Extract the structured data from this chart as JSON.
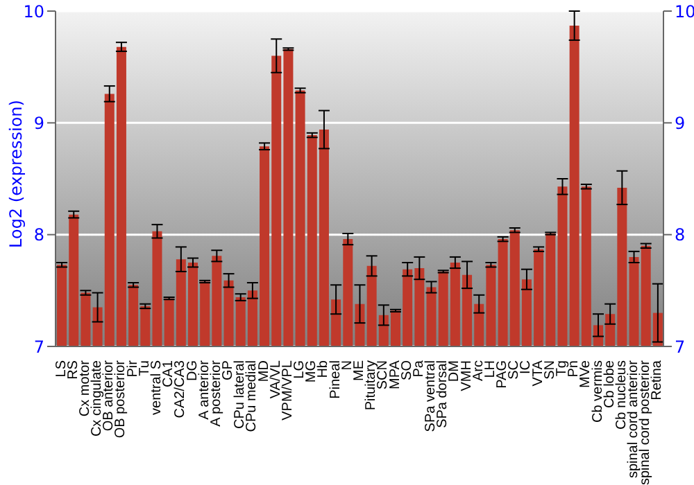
{
  "chart_data": {
    "type": "bar",
    "ylabel": "Log2 (expression)",
    "categories": [
      "LS",
      "RS",
      "Cx motor",
      "Cx cingulate",
      "OB anterior",
      "OB posterior",
      "Pir",
      "Tu",
      "ventral S",
      "CA1",
      "CA2/CA3",
      "DG",
      "A anterior",
      "A posterior",
      "GP",
      "CPu lateral",
      "CPu medial",
      "MD",
      "VA/VL",
      "VPM/VPL",
      "LG",
      "MG",
      "Hb",
      "Pineal",
      "N",
      "ME",
      "Pituitary",
      "SCN",
      "MPA",
      "SO",
      "Pa",
      "SPa ventral",
      "SPa dorsal",
      "DM",
      "VMH",
      "Arc",
      "LH",
      "PAG",
      "SC",
      "IC",
      "VTA",
      "SN",
      "Tg",
      "Pn",
      "MVe",
      "Cb vermis",
      "Cb lobe",
      "Cb nucleus",
      "spinal cord anterior",
      "spinal cord posterior",
      "Retina"
    ],
    "values": [
      7.73,
      8.18,
      7.48,
      7.35,
      9.26,
      9.68,
      7.55,
      7.36,
      8.03,
      7.43,
      7.78,
      7.75,
      7.58,
      7.81,
      7.59,
      7.44,
      7.5,
      8.79,
      9.6,
      9.66,
      9.29,
      8.89,
      8.94,
      7.42,
      7.96,
      7.38,
      7.72,
      7.28,
      7.32,
      7.69,
      7.7,
      7.53,
      7.67,
      7.75,
      7.64,
      7.38,
      7.73,
      7.96,
      8.04,
      7.6,
      7.87,
      8.01,
      8.43,
      9.87,
      8.43,
      7.19,
      7.29,
      8.42,
      7.8,
      7.9,
      7.3
    ],
    "errors": [
      0.02,
      0.03,
      0.02,
      0.13,
      0.07,
      0.04,
      0.02,
      0.02,
      0.06,
      0.01,
      0.11,
      0.04,
      0.01,
      0.05,
      0.06,
      0.03,
      0.07,
      0.03,
      0.15,
      0.01,
      0.02,
      0.02,
      0.17,
      0.13,
      0.05,
      0.17,
      0.09,
      0.09,
      0.01,
      0.06,
      0.1,
      0.05,
      0.01,
      0.05,
      0.12,
      0.08,
      0.02,
      0.02,
      0.02,
      0.09,
      0.02,
      0.01,
      0.07,
      0.13,
      0.02,
      0.1,
      0.09,
      0.15,
      0.05,
      0.02,
      0.26
    ],
    "color": "#c0392b",
    "ylim": [
      7,
      10
    ],
    "yticks": [
      7,
      8,
      9,
      10
    ],
    "y2lim": [
      7,
      10
    ],
    "y2ticks": [
      7,
      8,
      9,
      10
    ],
    "grid": "y"
  }
}
